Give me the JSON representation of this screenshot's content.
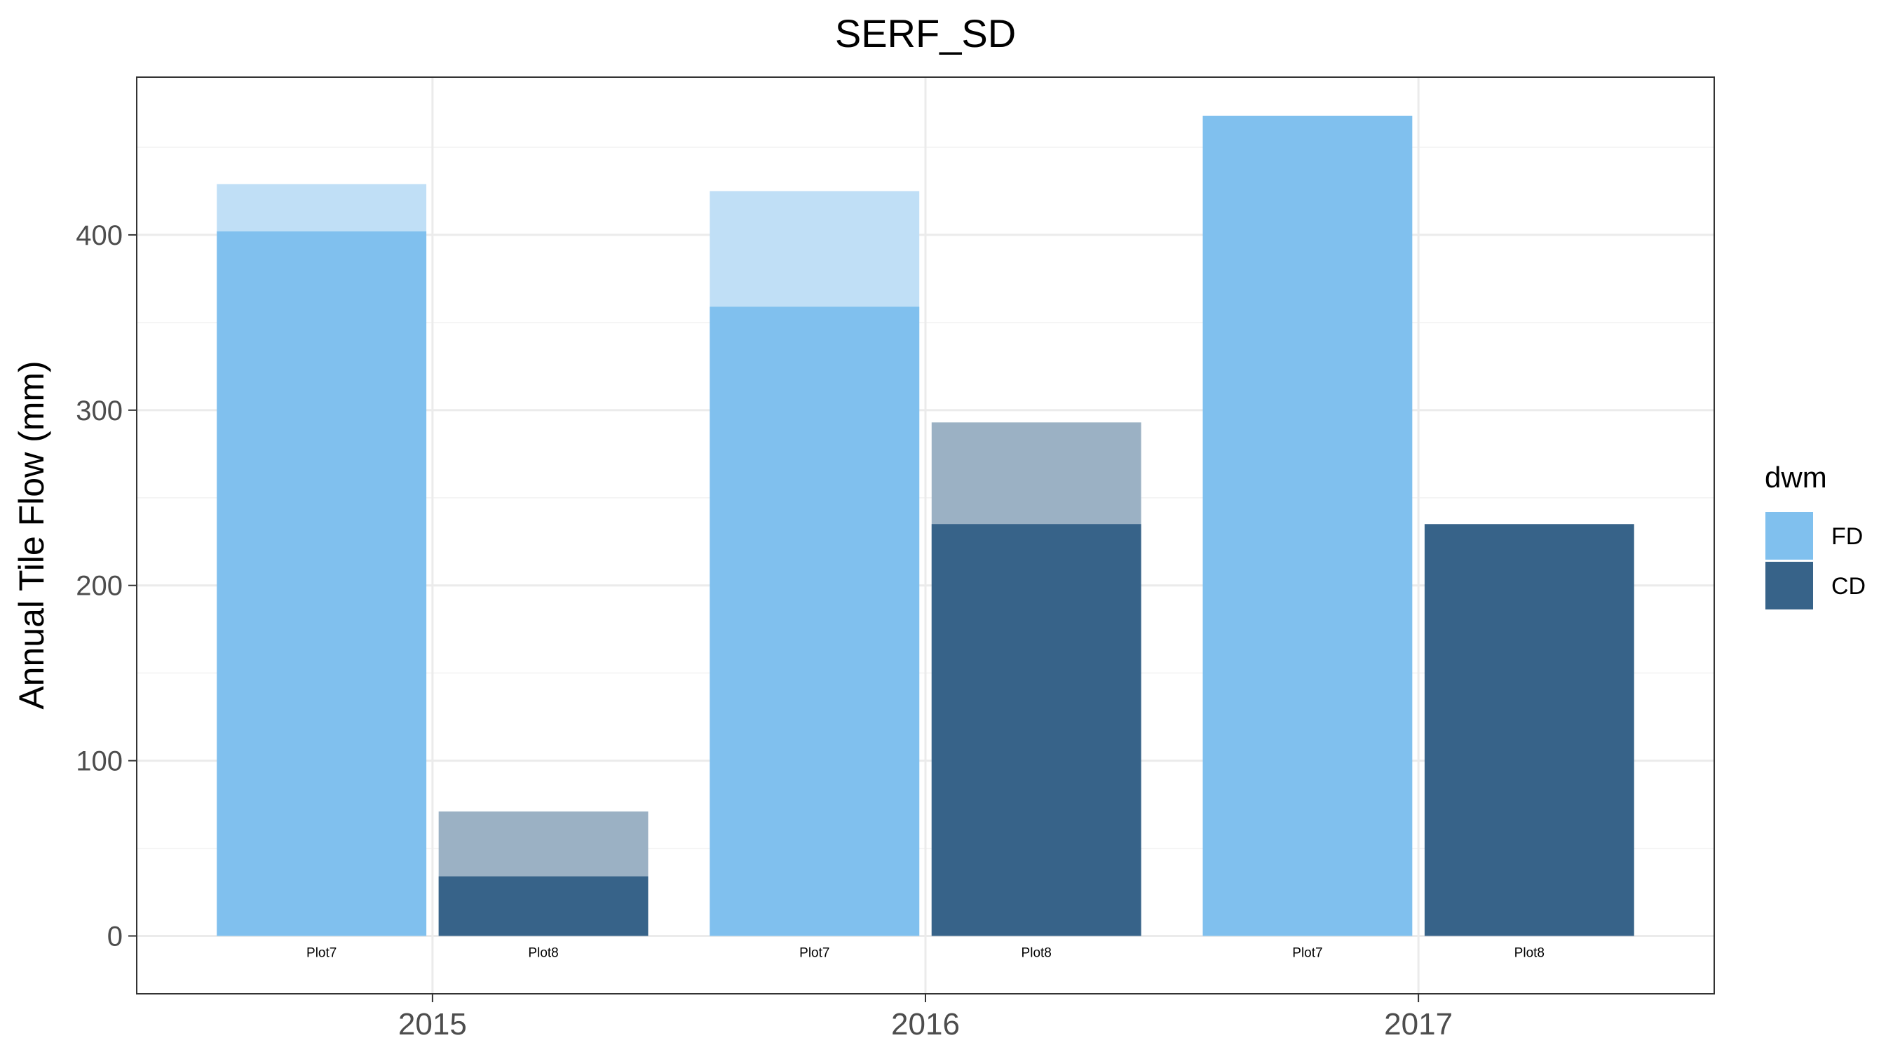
{
  "chart_data": {
    "type": "bar",
    "title": "SERF_SD",
    "xlabel": "",
    "ylabel": "Annual Tile Flow (mm)",
    "ylim": [
      -33,
      490
    ],
    "yticks": [
      0,
      100,
      200,
      300,
      400
    ],
    "categories": [
      "2015",
      "2016",
      "2017"
    ],
    "grid": true,
    "legend": {
      "title": "dwm",
      "position": "right",
      "entries": [
        {
          "label": "FD",
          "color": "#80C0EE"
        },
        {
          "label": "CD",
          "color": "#376389"
        }
      ]
    },
    "bars": [
      {
        "year": "2015",
        "label": "Plot7",
        "dwm": "FD",
        "value": 402,
        "upper": 429
      },
      {
        "year": "2015",
        "label": "Plot8",
        "dwm": "CD",
        "value": 34,
        "upper": 71
      },
      {
        "year": "2016",
        "label": "Plot7",
        "dwm": "FD",
        "value": 359,
        "upper": 425
      },
      {
        "year": "2016",
        "label": "Plot8",
        "dwm": "CD",
        "value": 235,
        "upper": 293
      },
      {
        "year": "2017",
        "label": "Plot7",
        "dwm": "FD",
        "value": 468,
        "upper": 468
      },
      {
        "year": "2017",
        "label": "Plot8",
        "dwm": "CD",
        "value": 235,
        "upper": 235
      }
    ]
  },
  "colors": {
    "FD": "#80C0EE",
    "FD_light": "#C0DFF6",
    "CD": "#376389",
    "CD_light": "#9BB1C4"
  }
}
